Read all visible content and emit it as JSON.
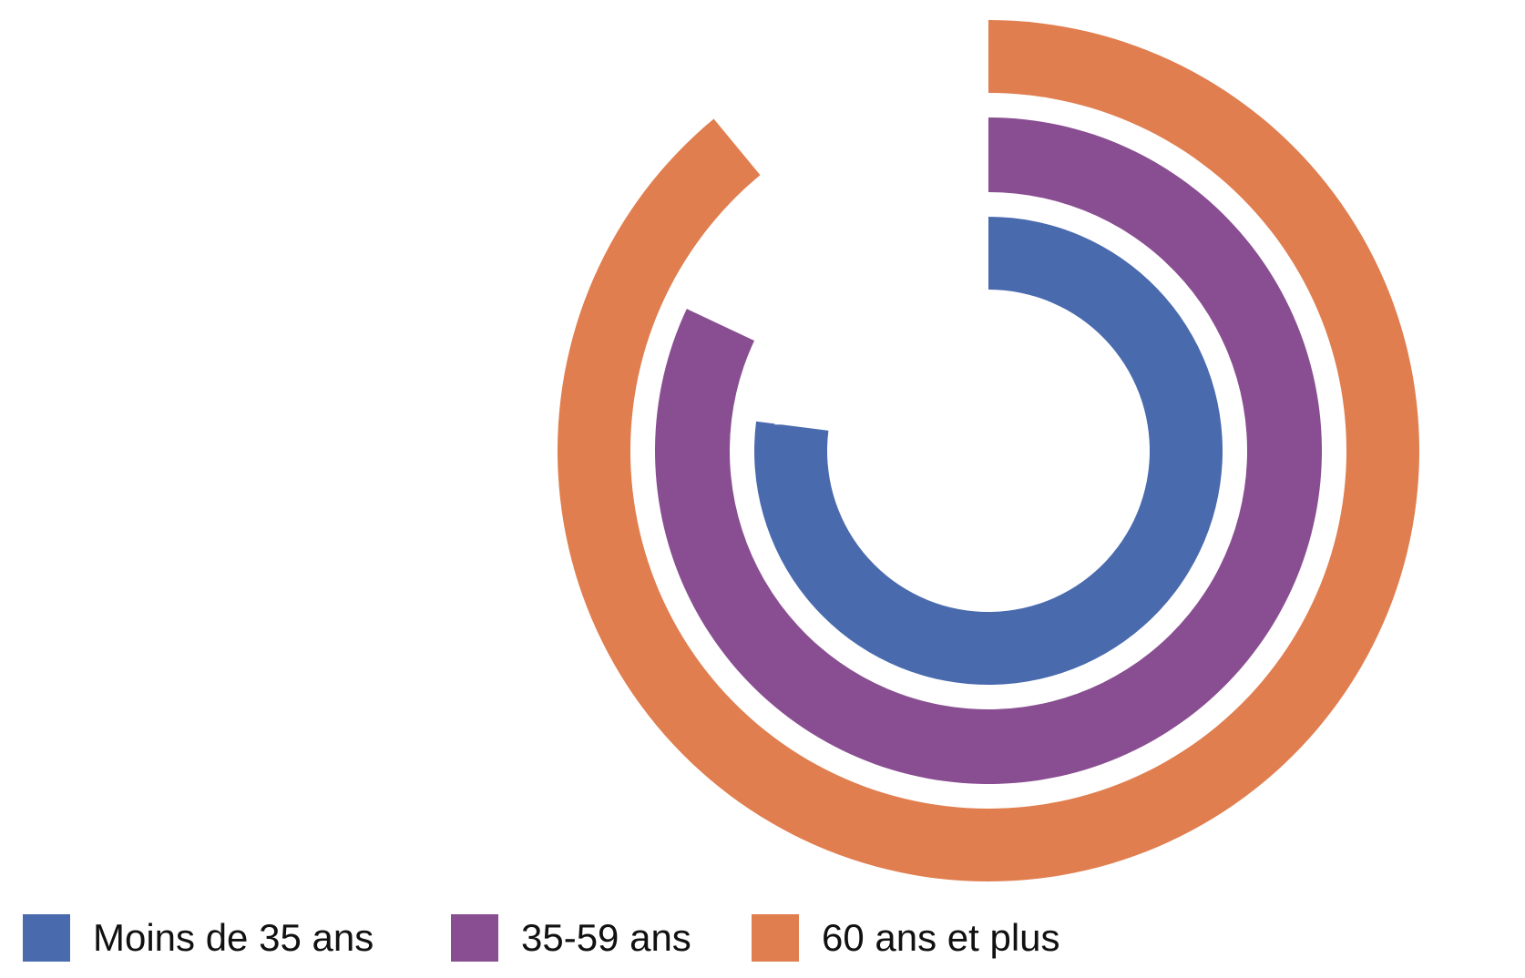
{
  "chart_data": {
    "type": "radial-bar",
    "max": 100,
    "series": [
      {
        "name": "Moins de 35 ans",
        "value": 77,
        "label": "77",
        "color": "#4A6AAE"
      },
      {
        "name": "35-59 ans",
        "value": 82,
        "label": "82",
        "color": "#894E91"
      },
      {
        "name": "60 ans et plus",
        "value": 89,
        "label": "89",
        "color": "#E07E4F"
      }
    ],
    "legend_position": "bottom-left"
  }
}
